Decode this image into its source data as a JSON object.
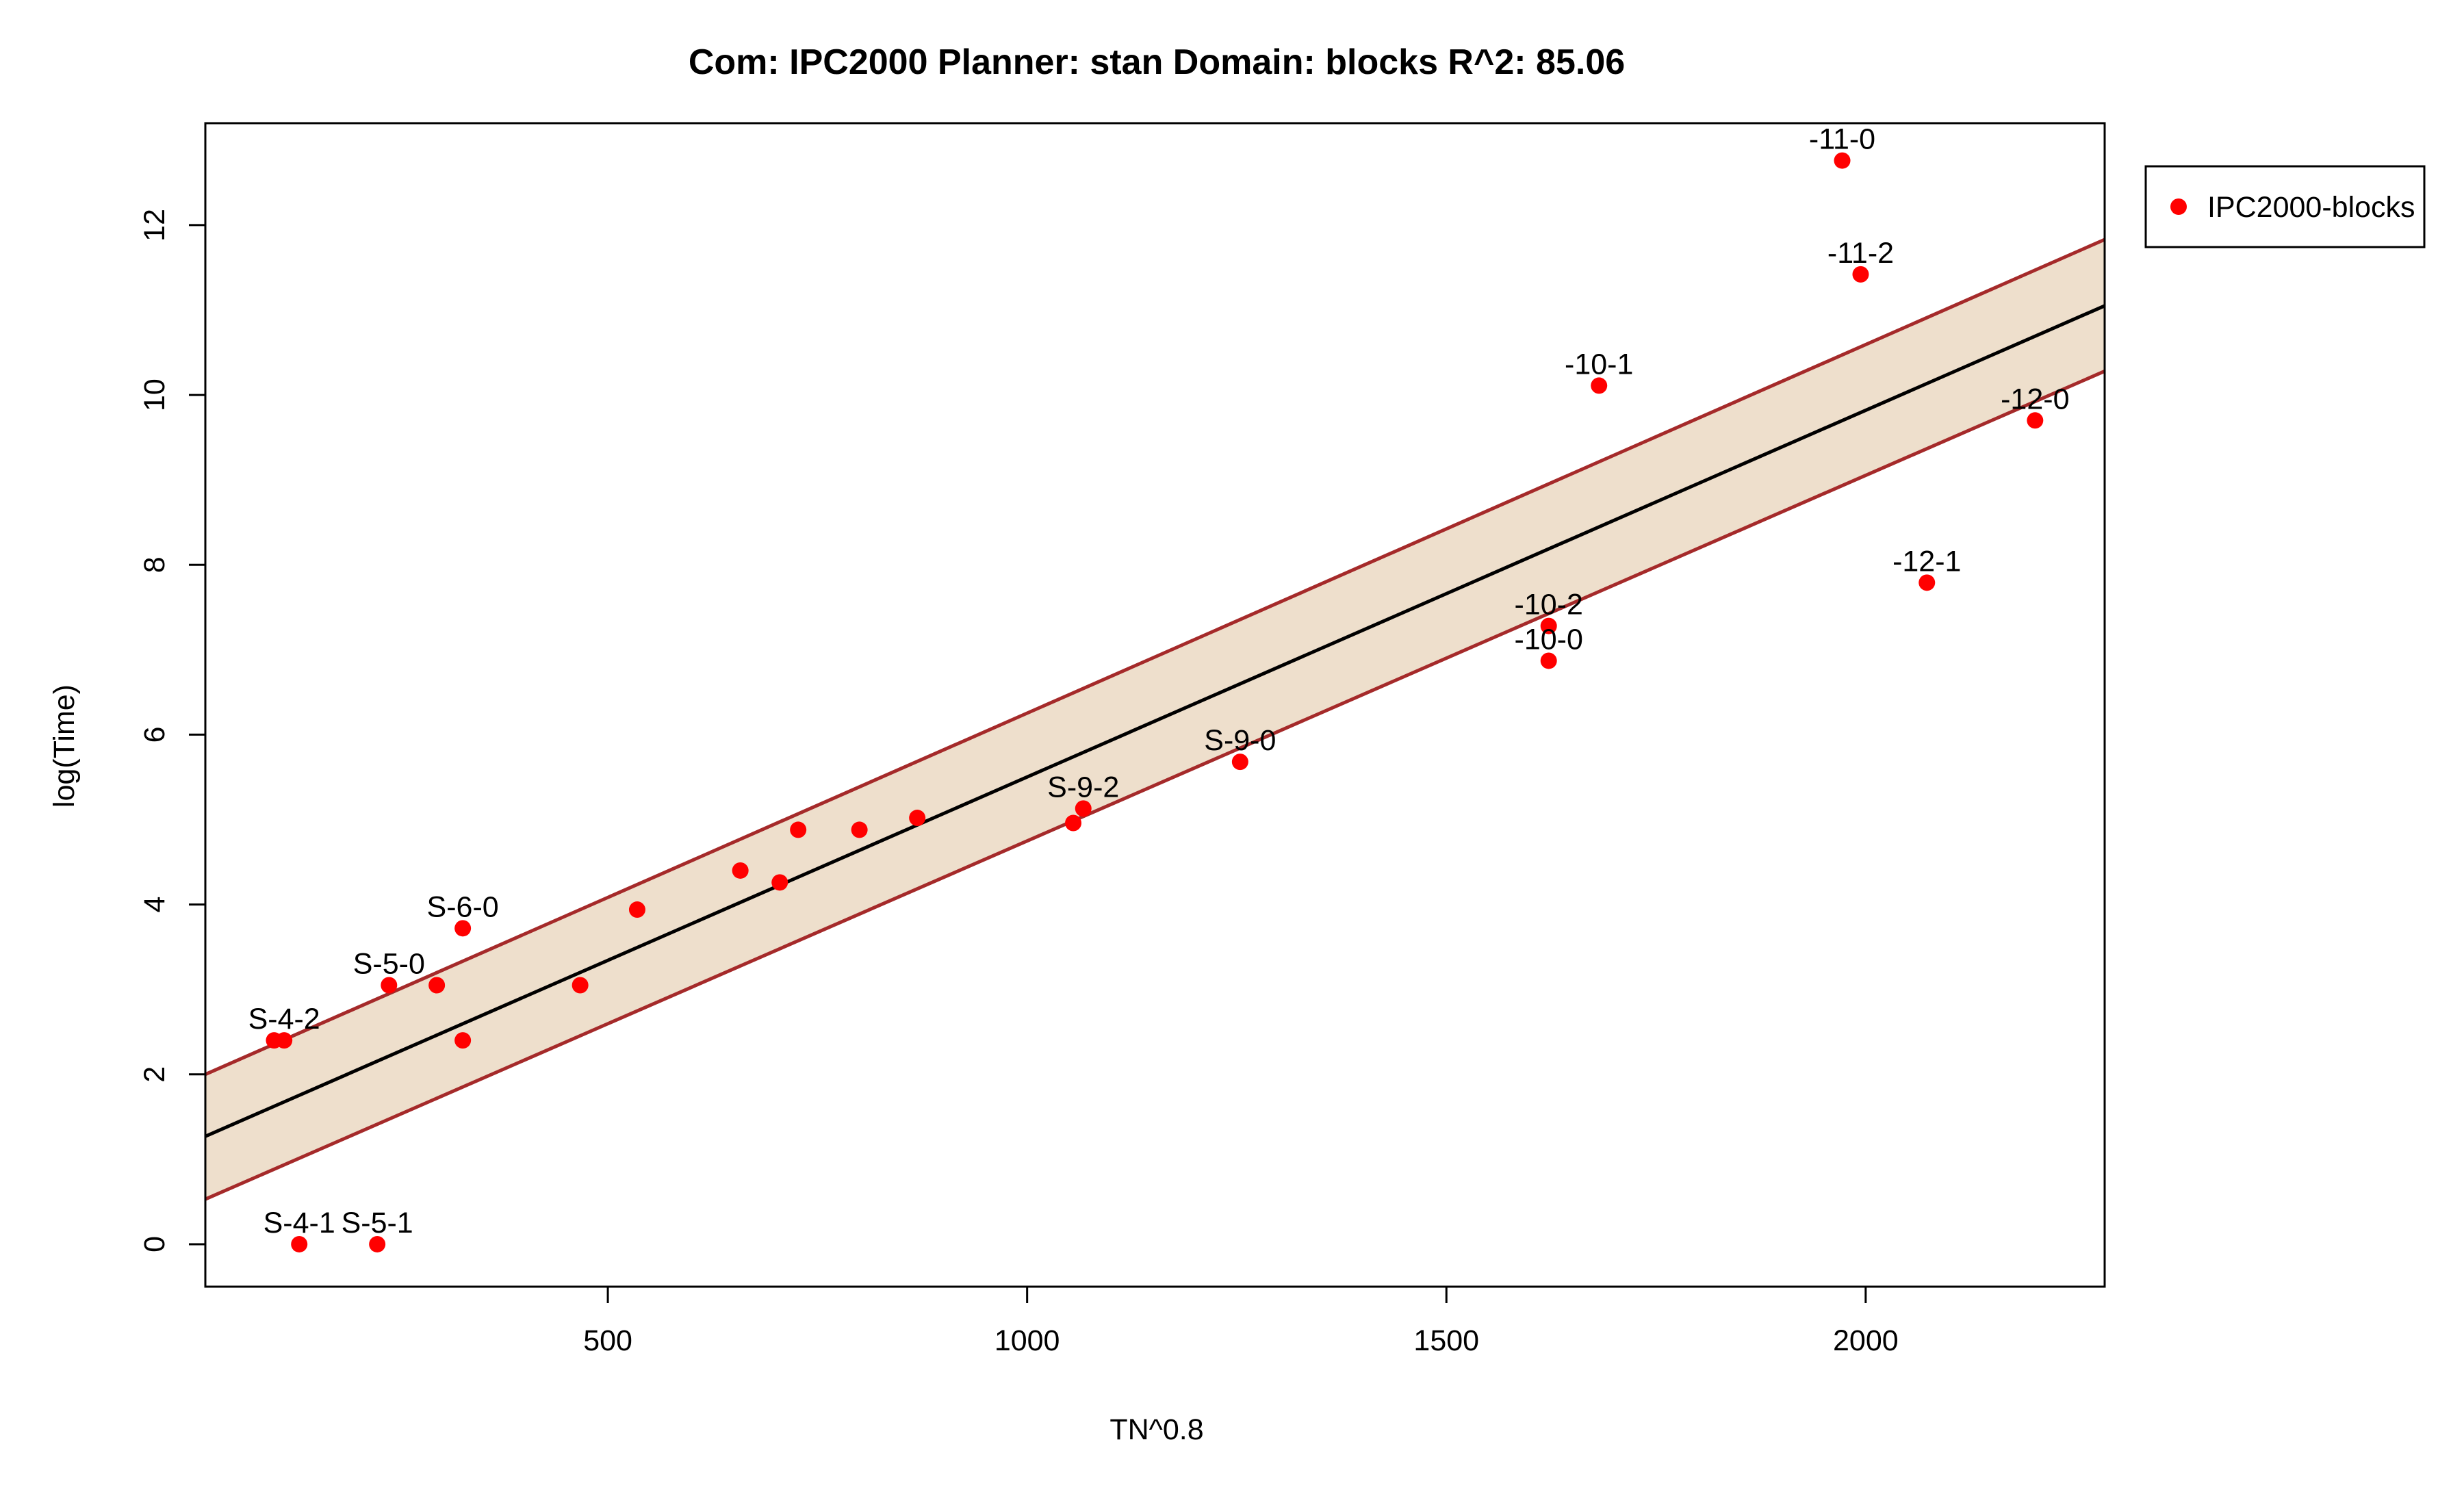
{
  "chart_data": {
    "type": "scatter",
    "title": "Com: IPC2000 Planner: stan Domain: blocks R^2: 85.06",
    "xlabel": "TN^0.8",
    "ylabel": "log(Time)",
    "xlim": [
      20,
      2285
    ],
    "ylim": [
      -0.5,
      13.2
    ],
    "xticks": [
      500,
      1000,
      1500,
      2000
    ],
    "xtick_labels": [
      "500",
      "1000",
      "1500",
      "2000"
    ],
    "yticks": [
      0,
      2,
      4,
      6,
      8,
      10,
      12
    ],
    "ytick_labels": [
      "0",
      "2",
      "4",
      "6",
      "8",
      "10",
      "12"
    ],
    "grid": false,
    "legend": {
      "position": "outside-right-top",
      "entries": [
        "IPC2000-blocks"
      ]
    },
    "colors": {
      "points": "#ff0000",
      "fit_line": "#000000",
      "band_line": "#a52a2a",
      "band_fill": "#eedfcc"
    },
    "fit": {
      "x": [
        20,
        2285
      ],
      "y": [
        1.27,
        11.05
      ],
      "upper": [
        2.0,
        11.83
      ],
      "lower": [
        0.53,
        10.28
      ]
    },
    "series": [
      {
        "name": "IPC2000-blocks",
        "points": [
          {
            "x": 102,
            "y": 2.4,
            "label": ""
          },
          {
            "x": 114,
            "y": 2.4,
            "label": "S-4-2"
          },
          {
            "x": 132,
            "y": 0.0,
            "label": "S-4-1"
          },
          {
            "x": 225,
            "y": 0.0,
            "label": "S-5-1"
          },
          {
            "x": 239,
            "y": 3.05,
            "label": "S-5-0"
          },
          {
            "x": 296,
            "y": 3.05,
            "label": ""
          },
          {
            "x": 327,
            "y": 3.72,
            "label": "S-6-0"
          },
          {
            "x": 327,
            "y": 2.4,
            "label": ""
          },
          {
            "x": 467,
            "y": 3.05,
            "label": ""
          },
          {
            "x": 535,
            "y": 3.94,
            "label": ""
          },
          {
            "x": 658,
            "y": 4.4,
            "label": ""
          },
          {
            "x": 705,
            "y": 4.26,
            "label": ""
          },
          {
            "x": 727,
            "y": 4.88,
            "label": ""
          },
          {
            "x": 800,
            "y": 4.88,
            "label": ""
          },
          {
            "x": 869,
            "y": 5.02,
            "label": ""
          },
          {
            "x": 1055,
            "y": 4.96,
            "label": ""
          },
          {
            "x": 1067,
            "y": 5.13,
            "label": "S-9-2"
          },
          {
            "x": 1254,
            "y": 5.68,
            "label": "S-9-0"
          },
          {
            "x": 1622,
            "y": 7.28,
            "label": "-10-2"
          },
          {
            "x": 1622,
            "y": 6.87,
            "label": "-10-0"
          },
          {
            "x": 1682,
            "y": 10.11,
            "label": "-10-1"
          },
          {
            "x": 1972,
            "y": 12.76,
            "label": "-11-0"
          },
          {
            "x": 1994,
            "y": 11.42,
            "label": "-11-2"
          },
          {
            "x": 2073,
            "y": 7.79,
            "label": "-12-1"
          },
          {
            "x": 2202,
            "y": 9.7,
            "label": "-12-0"
          }
        ]
      }
    ]
  }
}
